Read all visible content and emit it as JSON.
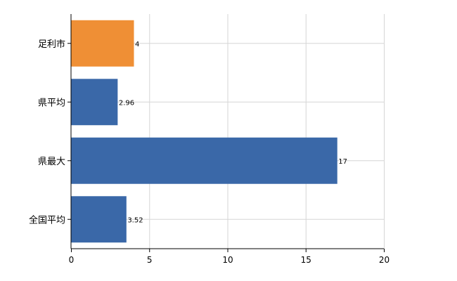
{
  "chart_data": {
    "type": "bar",
    "orientation": "horizontal",
    "categories": [
      "足利市",
      "県平均",
      "県最大",
      "全国平均"
    ],
    "values": [
      4,
      2.96,
      17,
      3.52
    ],
    "value_labels": [
      "4",
      "2.96",
      "17",
      "3.52"
    ],
    "bar_colors": [
      "#ef8f35",
      "#3a68a8",
      "#3a68a8",
      "#3a68a8"
    ],
    "xlim": [
      0,
      20
    ],
    "xticks": [
      0,
      5,
      10,
      15,
      20
    ],
    "xtick_labels": [
      "0",
      "5",
      "10",
      "15",
      "20"
    ],
    "grid": true,
    "legend": "none"
  }
}
